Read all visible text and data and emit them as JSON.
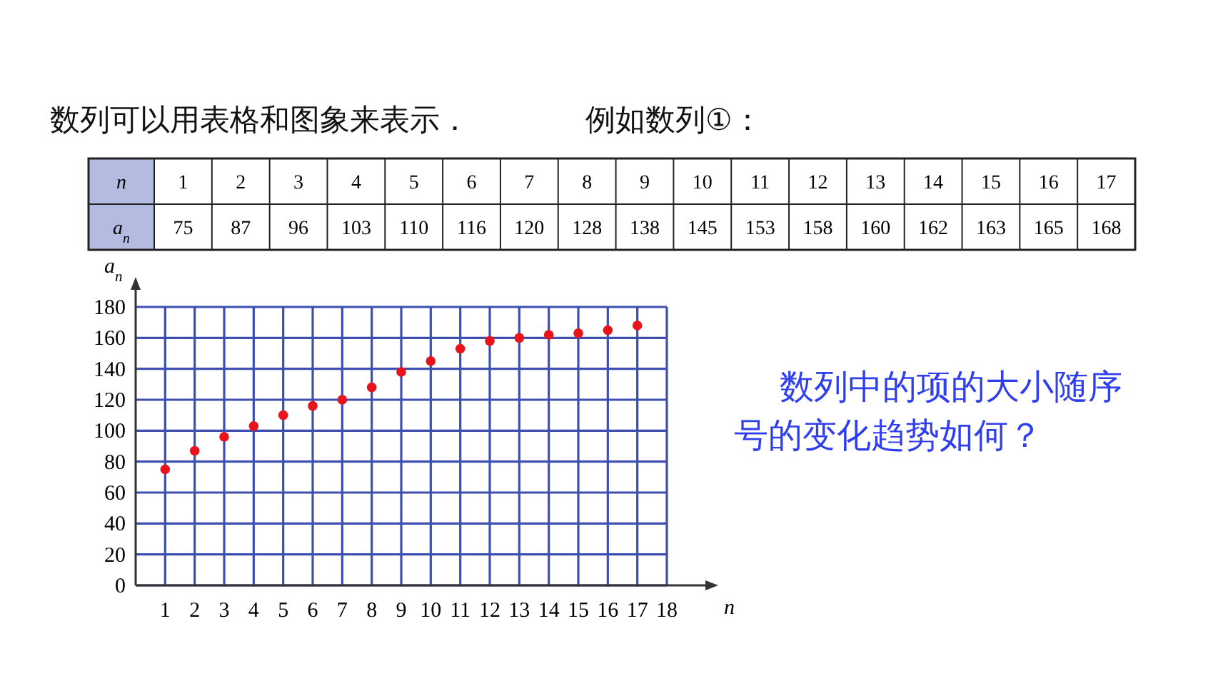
{
  "chart_data": [
    {
      "type": "heatmap",
      "title": "数列可以用表格和图象来表示．",
      "subtitle": "例如数列①：",
      "xlabel": "n",
      "y_categories": [
        "a$_{n}$"
      ],
      "categories": [
        "1",
        "2",
        "3",
        "4",
        "5",
        "6",
        "7",
        "8",
        "9",
        "10",
        "11",
        "12",
        "13",
        "14",
        "15",
        "16",
        "17"
      ],
      "cells": [
        [
          75,
          87,
          96,
          103,
          110,
          116,
          120,
          128,
          138,
          145,
          153,
          158,
          160,
          162,
          163,
          165,
          168
        ]
      ],
      "data_labels": true
    },
    {
      "type": "scatter",
      "xlabel": "n",
      "ylabel": "a$_{n}$",
      "x": [
        1,
        2,
        3,
        4,
        5,
        6,
        7,
        8,
        9,
        10,
        11,
        12,
        13,
        14,
        15,
        16,
        17
      ],
      "values": [
        75,
        87,
        96,
        103,
        110,
        116,
        120,
        128,
        138,
        145,
        153,
        158,
        160,
        162,
        163,
        165,
        168
      ],
      "color": "#e8141c",
      "marker": "circle",
      "grid": true,
      "xlim": [
        0,
        18
      ],
      "xticks": [
        1,
        2,
        3,
        4,
        5,
        6,
        7,
        8,
        9,
        10,
        11,
        12,
        13,
        14,
        15,
        16,
        17,
        18
      ],
      "ylim": [
        0,
        180
      ],
      "yticks": [
        0,
        20,
        40,
        60,
        80,
        100,
        120,
        140,
        160,
        180
      ],
      "annotations": [
        "数列中的项的大小随序号的变化趋势如何？"
      ]
    }
  ]
}
